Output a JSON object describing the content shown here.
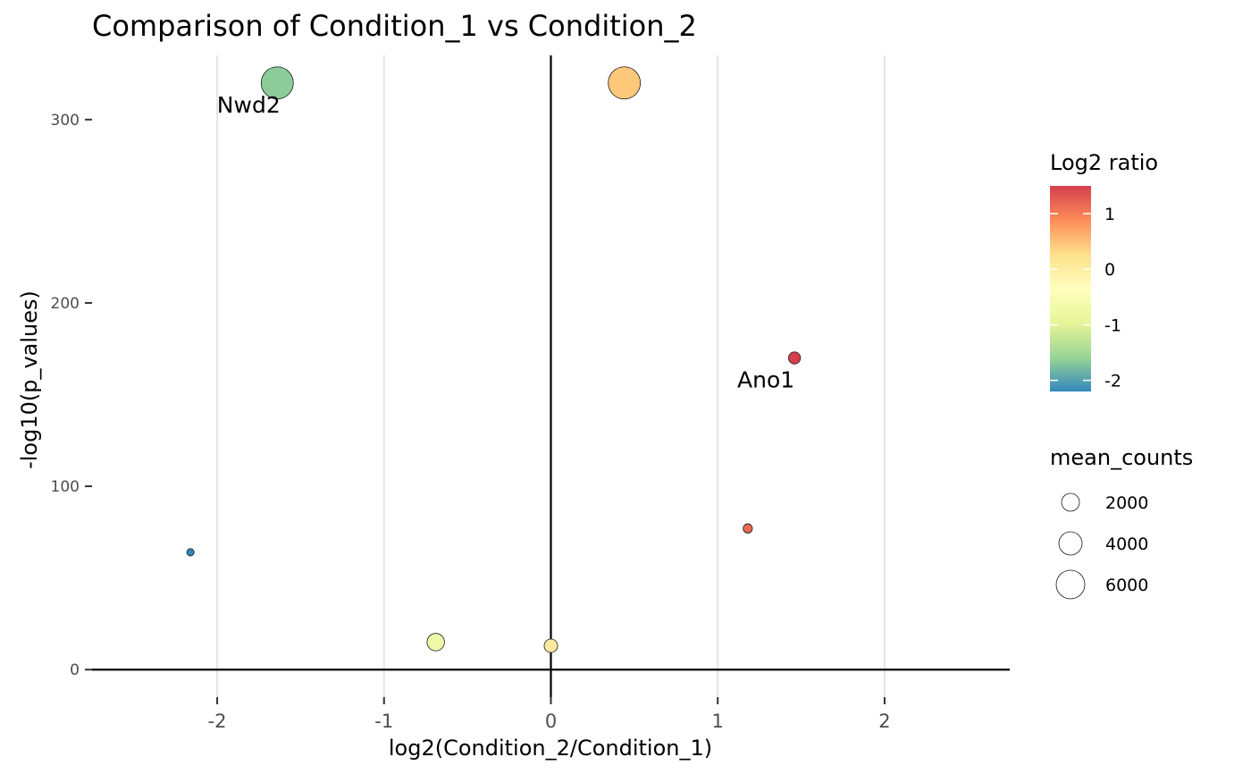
{
  "chart_data": {
    "type": "scatter",
    "title": "Comparison of Condition_1 vs Condition_2",
    "xlabel": "log2(Condition_2/Condition_1)",
    "ylabel": "-log10(p_values)",
    "xlim": [
      -2.75,
      2.75
    ],
    "ylim": [
      -15,
      335
    ],
    "x_ticks": [
      -2,
      -1,
      0,
      1,
      2
    ],
    "x_tick_labels": [
      "-2",
      "-1",
      "0",
      "1",
      "2"
    ],
    "y_ticks": [
      0,
      100,
      200,
      300
    ],
    "y_tick_labels": [
      "0",
      "100",
      "200",
      "300"
    ],
    "grid": "vertical major gridlines",
    "reference_lines": {
      "x": 0,
      "y": 0
    },
    "points": [
      {
        "x": -1.64,
        "y": 320,
        "mean_counts": 6000,
        "color": "#8ccb9a",
        "label": "Nwd2"
      },
      {
        "x": 0.44,
        "y": 320,
        "mean_counts": 6000,
        "color": "#fdc87a",
        "label": ""
      },
      {
        "x": 1.46,
        "y": 170,
        "mean_counts": 600,
        "color": "#d53e4f",
        "label": "Ano1"
      },
      {
        "x": 1.18,
        "y": 77,
        "mean_counts": 300,
        "color": "#e86b52",
        "label": ""
      },
      {
        "x": -2.16,
        "y": 64,
        "mean_counts": 150,
        "color": "#3288bd",
        "label": ""
      },
      {
        "x": -0.69,
        "y": 15,
        "mean_counts": 1500,
        "color": "#eef8a6",
        "label": ""
      },
      {
        "x": 0.0,
        "y": 13,
        "mean_counts": 800,
        "color": "#fde8a0",
        "label": ""
      }
    ],
    "color_legend": {
      "title": "Log2 ratio",
      "min": -2.2,
      "max": 1.5,
      "ticks": [
        1,
        0,
        -1,
        -2
      ],
      "tick_labels": [
        "1",
        "0",
        "-1",
        "-2"
      ],
      "palette": [
        "#3288bd",
        "#99d594",
        "#e6f598",
        "#ffffbf",
        "#fee08b",
        "#fc8d59",
        "#d53e4f"
      ]
    },
    "size_legend": {
      "title": "mean_counts",
      "values": [
        2000,
        4000,
        6000
      ],
      "labels": [
        "2000",
        "4000",
        "6000"
      ]
    },
    "legend_position": "right"
  }
}
